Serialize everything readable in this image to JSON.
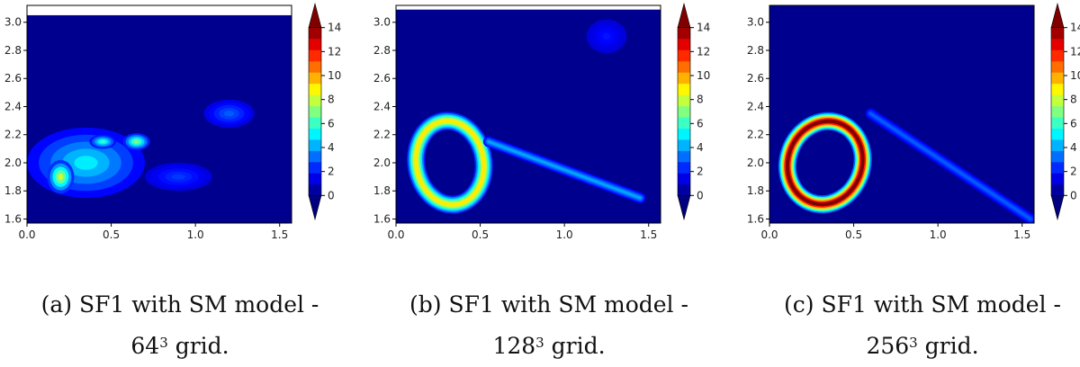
{
  "figure": {
    "panels": [
      {
        "caption_line1": "(a) SF1 with SM model -",
        "caption_base": "64",
        "caption_exp": "3",
        "caption_rest": " grid."
      },
      {
        "caption_line1": "(b) SF1 with SM model -",
        "caption_base": "128",
        "caption_exp": "3",
        "caption_rest": " grid."
      },
      {
        "caption_line1": "(c) SF1 with SM model -",
        "caption_base": "256",
        "caption_exp": "3",
        "caption_rest": " grid."
      }
    ]
  },
  "chart_data": [
    {
      "type": "heatmap",
      "title": "",
      "xlabel": "",
      "ylabel": "",
      "xlim": [
        0.0,
        1.571
      ],
      "ylim": [
        1.571,
        3.05
      ],
      "xticks": [
        "0.0",
        "0.5",
        "1.0",
        "1.5"
      ],
      "yticks": [
        "1.6",
        "1.8",
        "2.0",
        "2.2",
        "2.4",
        "2.6",
        "2.8",
        "3.0"
      ],
      "colorbar": {
        "min": 0,
        "max": 14,
        "ticks": [
          "0",
          "2",
          "4",
          "6",
          "8",
          "10",
          "12",
          "14"
        ],
        "colormap": "jet",
        "extend": "both"
      },
      "features": [
        {
          "shape": "blob",
          "cx": 0.35,
          "cy": 2.0,
          "rx": 0.35,
          "ry": 0.25,
          "value": 5
        },
        {
          "shape": "blob",
          "cx": 0.2,
          "cy": 1.9,
          "rx": 0.08,
          "ry": 0.12,
          "value": 8
        },
        {
          "shape": "blob",
          "cx": 0.65,
          "cy": 2.15,
          "rx": 0.08,
          "ry": 0.06,
          "value": 7
        },
        {
          "shape": "blob",
          "cx": 0.45,
          "cy": 2.15,
          "rx": 0.08,
          "ry": 0.05,
          "value": 6
        },
        {
          "shape": "blob",
          "cx": 1.2,
          "cy": 2.35,
          "rx": 0.15,
          "ry": 0.1,
          "value": 3
        },
        {
          "shape": "blob",
          "cx": 0.9,
          "cy": 1.9,
          "rx": 0.2,
          "ry": 0.1,
          "value": 2.5
        }
      ]
    },
    {
      "type": "heatmap",
      "title": "",
      "xlabel": "",
      "ylabel": "",
      "xlim": [
        0.0,
        1.571
      ],
      "ylim": [
        1.571,
        3.09
      ],
      "xticks": [
        "0.0",
        "0.5",
        "1.0",
        "1.5"
      ],
      "yticks": [
        "1.6",
        "1.8",
        "2.0",
        "2.2",
        "2.4",
        "2.6",
        "2.8",
        "3.0"
      ],
      "colorbar": {
        "min": 0,
        "max": 14,
        "ticks": [
          "0",
          "2",
          "4",
          "6",
          "8",
          "10",
          "12",
          "14"
        ],
        "colormap": "jet",
        "extend": "both"
      },
      "features": [
        {
          "shape": "ring",
          "cx": 0.32,
          "cy": 2.0,
          "rx": 0.2,
          "ry": 0.3,
          "angle": -10,
          "value": 9
        },
        {
          "shape": "streak",
          "x1": 0.55,
          "y1": 2.15,
          "x2": 1.45,
          "y2": 1.75,
          "value": 4
        },
        {
          "shape": "blob",
          "cx": 1.25,
          "cy": 2.9,
          "rx": 0.12,
          "ry": 0.12,
          "value": 2
        }
      ]
    },
    {
      "type": "heatmap",
      "title": "",
      "xlabel": "",
      "ylabel": "",
      "xlim": [
        0.0,
        1.571
      ],
      "ylim": [
        1.571,
        3.12
      ],
      "xticks": [
        "0.0",
        "0.5",
        "1.0",
        "1.5"
      ],
      "yticks": [
        "1.6",
        "1.8",
        "2.0",
        "2.2",
        "2.4",
        "2.6",
        "2.8",
        "3.0"
      ],
      "colorbar": {
        "min": 0,
        "max": 14,
        "ticks": [
          "0",
          "2",
          "4",
          "6",
          "8",
          "10",
          "12",
          "14"
        ],
        "colormap": "jet",
        "extend": "both"
      },
      "features": [
        {
          "shape": "ring",
          "cx": 0.33,
          "cy": 2.0,
          "rx": 0.22,
          "ry": 0.3,
          "angle": 20,
          "value": 14
        },
        {
          "shape": "streak",
          "x1": 0.6,
          "y1": 2.35,
          "x2": 1.55,
          "y2": 1.6,
          "value": 3
        }
      ]
    }
  ]
}
